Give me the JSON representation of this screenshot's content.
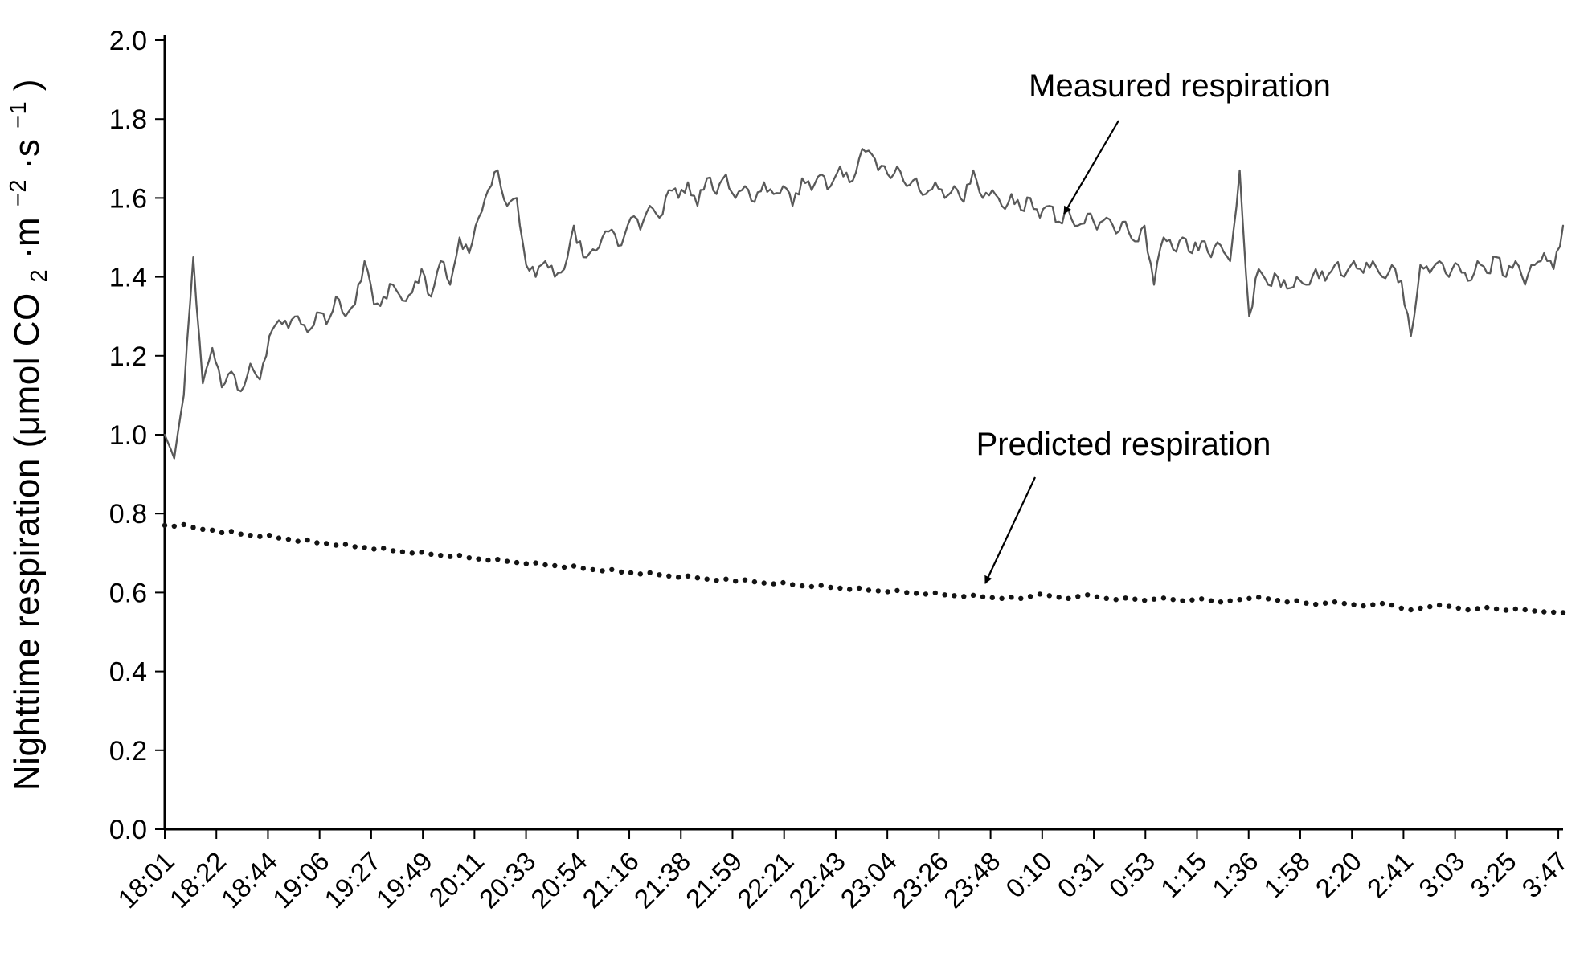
{
  "figure": {
    "background": "#ffffff",
    "ylabel_parts": [
      "Nighttime respiration (μmol CO",
      "2",
      "·m",
      "−2",
      "·s",
      "−1",
      ")"
    ],
    "annotations": [
      {
        "label": "Measured respiration"
      },
      {
        "label": "Predicted respiration"
      }
    ]
  },
  "chart_data": {
    "type": "line",
    "title": "",
    "xlabel": "",
    "ylabel": "Nighttime respiration (μmol CO2·m−2·s−1)",
    "ylim": [
      0.0,
      2.0
    ],
    "ytick_step": 0.2,
    "yticks": [
      "0.0",
      "0.2",
      "0.4",
      "0.6",
      "0.8",
      "1.0",
      "1.2",
      "1.4",
      "1.6",
      "1.8",
      "2.0"
    ],
    "grid": false,
    "legend_position": "annotated-arrows",
    "xticklabels": [
      "18:01",
      "18:22",
      "18:44",
      "19:06",
      "19:27",
      "19:49",
      "20:11",
      "20:33",
      "20:54",
      "21:16",
      "21:38",
      "21:59",
      "22:21",
      "22:43",
      "23:04",
      "23:26",
      "23:48",
      "0:10",
      "0:31",
      "0:53",
      "1:15",
      "1:36",
      "1:58",
      "2:20",
      "2:41",
      "3:03",
      "3:25",
      "3:47"
    ],
    "xtick_range_min": [
      0,
      586
    ],
    "x_total_min": 588,
    "x_step_min": 4,
    "axis_color": "#000000",
    "noise": {
      "amplitude": 0.018,
      "seed": 11,
      "subdivide": 3
    },
    "series": [
      {
        "name": "Measured respiration",
        "style": "line",
        "color": "#595959",
        "stroke_width": 2.3,
        "values": [
          1.0,
          0.94,
          1.1,
          1.45,
          1.13,
          1.22,
          1.12,
          1.16,
          1.11,
          1.18,
          1.14,
          1.25,
          1.29,
          1.27,
          1.3,
          1.26,
          1.31,
          1.28,
          1.35,
          1.3,
          1.33,
          1.44,
          1.33,
          1.35,
          1.38,
          1.34,
          1.36,
          1.42,
          1.35,
          1.44,
          1.38,
          1.5,
          1.46,
          1.55,
          1.62,
          1.67,
          1.58,
          1.6,
          1.43,
          1.4,
          1.44,
          1.4,
          1.42,
          1.53,
          1.45,
          1.47,
          1.5,
          1.52,
          1.48,
          1.55,
          1.52,
          1.58,
          1.55,
          1.62,
          1.6,
          1.64,
          1.58,
          1.65,
          1.61,
          1.66,
          1.6,
          1.63,
          1.59,
          1.64,
          1.61,
          1.63,
          1.58,
          1.65,
          1.62,
          1.66,
          1.63,
          1.68,
          1.64,
          1.7,
          1.72,
          1.67,
          1.66,
          1.68,
          1.63,
          1.65,
          1.61,
          1.64,
          1.6,
          1.63,
          1.59,
          1.67,
          1.6,
          1.62,
          1.58,
          1.61,
          1.57,
          1.6,
          1.55,
          1.58,
          1.54,
          1.57,
          1.53,
          1.56,
          1.52,
          1.55,
          1.51,
          1.54,
          1.49,
          1.53,
          1.38,
          1.5,
          1.47,
          1.5,
          1.46,
          1.49,
          1.45,
          1.48,
          1.44,
          1.67,
          1.3,
          1.42,
          1.38,
          1.4,
          1.37,
          1.4,
          1.38,
          1.42,
          1.39,
          1.43,
          1.4,
          1.44,
          1.41,
          1.44,
          1.4,
          1.43,
          1.39,
          1.25,
          1.43,
          1.41,
          1.44,
          1.4,
          1.43,
          1.39,
          1.44,
          1.41,
          1.45,
          1.4,
          1.44,
          1.38,
          1.43,
          1.46,
          1.42,
          1.53
        ]
      },
      {
        "name": "Predicted respiration",
        "style": "dots",
        "color": "#141414",
        "dot_radius": 3.2,
        "values": [
          0.77,
          0.768,
          0.772,
          0.765,
          0.76,
          0.758,
          0.752,
          0.755,
          0.748,
          0.745,
          0.742,
          0.745,
          0.738,
          0.735,
          0.73,
          0.733,
          0.726,
          0.724,
          0.72,
          0.722,
          0.716,
          0.714,
          0.71,
          0.712,
          0.706,
          0.703,
          0.7,
          0.702,
          0.697,
          0.694,
          0.691,
          0.694,
          0.688,
          0.685,
          0.682,
          0.684,
          0.679,
          0.676,
          0.673,
          0.675,
          0.67,
          0.668,
          0.664,
          0.667,
          0.661,
          0.658,
          0.655,
          0.658,
          0.652,
          0.65,
          0.647,
          0.65,
          0.645,
          0.642,
          0.639,
          0.642,
          0.637,
          0.634,
          0.631,
          0.634,
          0.629,
          0.632,
          0.627,
          0.624,
          0.622,
          0.625,
          0.62,
          0.617,
          0.615,
          0.618,
          0.613,
          0.611,
          0.608,
          0.611,
          0.606,
          0.604,
          0.602,
          0.605,
          0.6,
          0.598,
          0.596,
          0.599,
          0.594,
          0.592,
          0.59,
          0.593,
          0.589,
          0.587,
          0.585,
          0.588,
          0.585,
          0.59,
          0.596,
          0.592,
          0.588,
          0.585,
          0.59,
          0.594,
          0.589,
          0.585,
          0.582,
          0.586,
          0.583,
          0.58,
          0.583,
          0.586,
          0.582,
          0.579,
          0.581,
          0.584,
          0.579,
          0.576,
          0.579,
          0.582,
          0.585,
          0.588,
          0.584,
          0.58,
          0.576,
          0.579,
          0.573,
          0.57,
          0.573,
          0.576,
          0.572,
          0.569,
          0.566,
          0.569,
          0.572,
          0.568,
          0.56,
          0.556,
          0.56,
          0.564,
          0.568,
          0.565,
          0.56,
          0.556,
          0.559,
          0.562,
          0.558,
          0.555,
          0.558,
          0.556,
          0.553,
          0.551,
          0.55,
          0.549
        ]
      }
    ]
  }
}
